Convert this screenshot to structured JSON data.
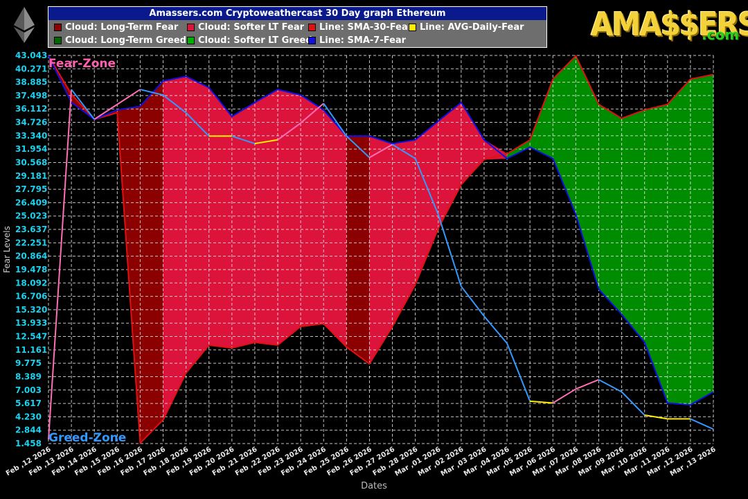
{
  "chart_data": {
    "type": "area",
    "title": "Amassers.com Cryptoweathercast 30 Day graph Ethereum",
    "xlabel": "Dates",
    "ylabel": "Fear Levels",
    "ylim": [
      1.458,
      43.043
    ],
    "y_ticks": [
      "43.043",
      "40.271",
      "38.885",
      "37.498",
      "36.112",
      "34.726",
      "33.340",
      "31.954",
      "30.568",
      "29.181",
      "27.795",
      "26.409",
      "25.023",
      "23.637",
      "22.251",
      "20.864",
      "19.478",
      "18.092",
      "16.706",
      "15.320",
      "13.933",
      "12.547",
      "11.161",
      "9.775",
      "8.389",
      "7.003",
      "5.617",
      "4.230",
      "2.844",
      "1.458"
    ],
    "categories": [
      "Feb ,12 2026",
      "Feb ,13 2026",
      "Feb ,14 2026",
      "Feb ,15 2026",
      "Feb ,16 2026",
      "Feb ,17 2026",
      "Feb ,18 2026",
      "Feb ,19 2026",
      "Feb ,20 2026",
      "Feb ,21 2026",
      "Feb ,22 2026",
      "Feb ,23 2026",
      "Feb ,24 2026",
      "Feb ,25 2026",
      "Feb ,26 2026",
      "Feb ,27 2026",
      "Feb ,28 2026",
      "Mar ,01 2026",
      "Mar ,02 2026",
      "Mar ,03 2026",
      "Mar ,04 2026",
      "Mar ,05 2026",
      "Mar ,06 2026",
      "Mar ,07 2026",
      "Mar ,08 2026",
      "Mar ,09 2026",
      "Mar ,10 2026",
      "Mar ,11 2026",
      "Mar ,12 2026",
      "Mar ,13 2026"
    ],
    "series": [
      {
        "name": "Line: SMA-30-Fear",
        "color": "#e01010",
        "values": [
          43.0,
          38.9,
          36.2,
          36.9,
          1.5,
          4.0,
          9.0,
          12.0,
          11.7,
          12.3,
          12.0,
          14.0,
          14.3,
          11.8,
          10.0,
          14.0,
          18.5,
          24.5,
          29.2,
          31.9,
          32.5,
          34.0,
          40.5,
          43.0,
          37.8,
          36.3,
          37.2,
          37.8,
          40.5,
          41.0
        ]
      },
      {
        "name": "Line: SMA-7-Fear",
        "color": "#1010e0",
        "values": [
          43.0,
          38.0,
          36.2,
          37.2,
          37.6,
          40.3,
          40.8,
          39.6,
          36.5,
          38.0,
          39.4,
          38.8,
          37.2,
          34.4,
          34.4,
          33.6,
          34.0,
          36.0,
          38.0,
          34.0,
          32.0,
          33.2,
          32.0,
          26.0,
          18.0,
          15.3,
          12.3,
          5.8,
          5.6,
          7.0
        ]
      },
      {
        "name": "Line: AVG-Daily-Fear",
        "values": [
          1.9,
          39.4,
          36.2,
          37.8,
          39.4,
          38.8,
          36.9,
          34.4,
          34.4,
          33.6,
          34.0,
          35.8,
          37.9,
          34.4,
          32.1,
          33.5,
          32.0,
          26.0,
          18.3,
          15.1,
          12.2,
          6.0,
          5.8,
          7.3,
          8.3,
          7.0,
          4.5,
          4.1,
          4.1,
          3.0
        ]
      }
    ],
    "legend": [
      {
        "label": "Cloud: Long-Term Fear",
        "color": "#8b0000"
      },
      {
        "label": "Cloud: Softer LT Fear",
        "color": "#dc143c"
      },
      {
        "label": "Line: SMA-30-Fear",
        "color": "#e01010"
      },
      {
        "label": "Line: AVG-Daily-Fear",
        "color": "#ffee00"
      },
      {
        "label": "Cloud: Long-Term Greed",
        "color": "#006400"
      },
      {
        "label": "Cloud: Softer LT Greed",
        "color": "#00b000"
      },
      {
        "label": "Line: SMA-7-Fear",
        "color": "#1010e0"
      }
    ],
    "annotations": {
      "top": "Fear-Zone",
      "bottom": "Greed-Zone"
    },
    "grid": true,
    "legend_position": "top"
  },
  "logo": {
    "main": "AMA$$ERS",
    "suffix": ".com"
  }
}
